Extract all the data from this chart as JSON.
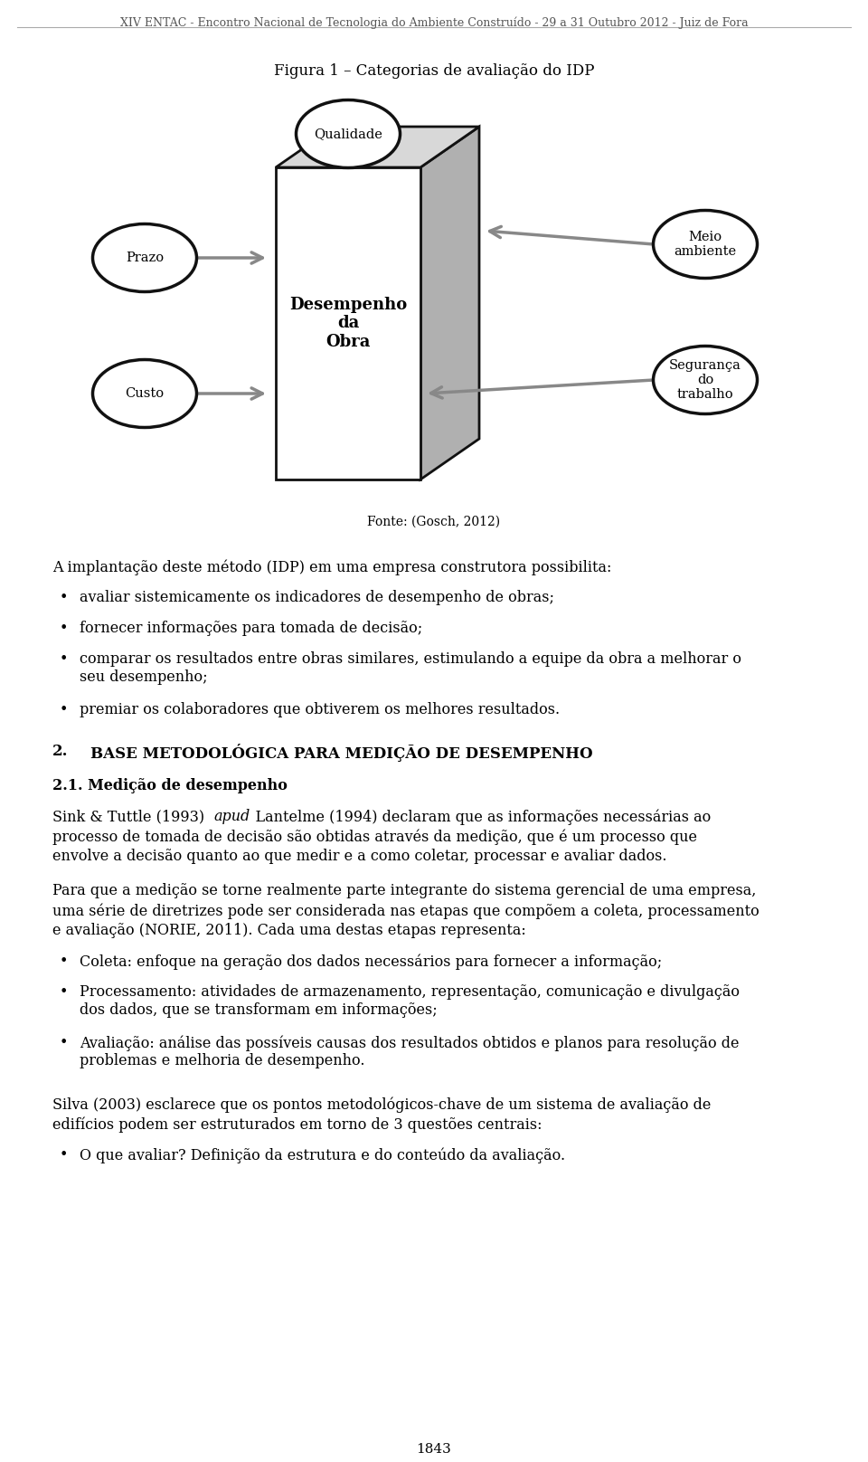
{
  "bg_color": "#ffffff",
  "text_color": "#000000",
  "header_text": "XIV ENTAC - Encontro Nacional de Tecnologia do Ambiente Construído - 29 a 31 Outubro 2012 - Juiz de Fora",
  "figure_title": "Figura 1 – Categorias de avaliação do IDP",
  "fonte_text": "Fonte: (Gosch, 2012)",
  "intro_text": "A implantação deste método (IDP) em uma empresa construtora possibilita:",
  "bullets": [
    "avaliar sistemicamente os indicadores de desempenho de obras;",
    "fornecer informações para tomada de decisão;",
    "comparar os resultados entre obras similares, estimulando a equipe da obra a melhorar o\nseu desempenho;",
    "premiar os colaboradores que obtiverem os melhores resultados."
  ],
  "section_heading_num": "2.",
  "section_heading_text": "BASE METODOLÓGICA PARA MEDIÇÃO DE DESEMPENHO",
  "subsection_heading": "2.1. Medição de desempenho",
  "body_text_1a": "Sink & Tuttle (1993) ",
  "body_text_1b": "apud",
  "body_text_1c": " Lantelme (1994) declaram que as informações necessárias ao\nprocesso de tomada de decisão são obtidas através da medição, que é um processo que\nenvolve a decisão quanto ao que medir e a como coletar, processar e avaliar dados.",
  "body_text_2": "Para que a medição se torne realmente parte integrante do sistema gerencial de uma empresa,\numa série de diretrizes pode ser considerada nas etapas que compõem a coleta, processamento\ne avaliação (NORIE, 2011). Cada uma destas etapas representa:",
  "bullets2": [
    "Coleta: enfoque na geração dos dados necessários para fornecer a informação;",
    "Processamento: atividades de armazenamento, representação, comunicação e divulgação\ndos dados, que se transformam em informações;",
    "Avaliação: análise das possíveis causas dos resultados obtidos e planos para resolução de\nproblemas e melhoria de desempenho."
  ],
  "body_text_3": "Silva (2003) esclarece que os pontos metodológicos-chave de um sistema de avaliação de\nedifícios podem ser estruturados em torno de 3 questões centrais:",
  "bullets3": [
    "O que avaliar? Definição da estrutura e do conteúdo da avaliação."
  ],
  "page_number": "1843",
  "arrow_color": "#888888",
  "ellipse_edge_color": "#111111",
  "box_edge_color": "#111111",
  "side_face_color": "#b0b0b0",
  "top_face_color": "#d8d8d8",
  "front_face_color": "#ffffff"
}
